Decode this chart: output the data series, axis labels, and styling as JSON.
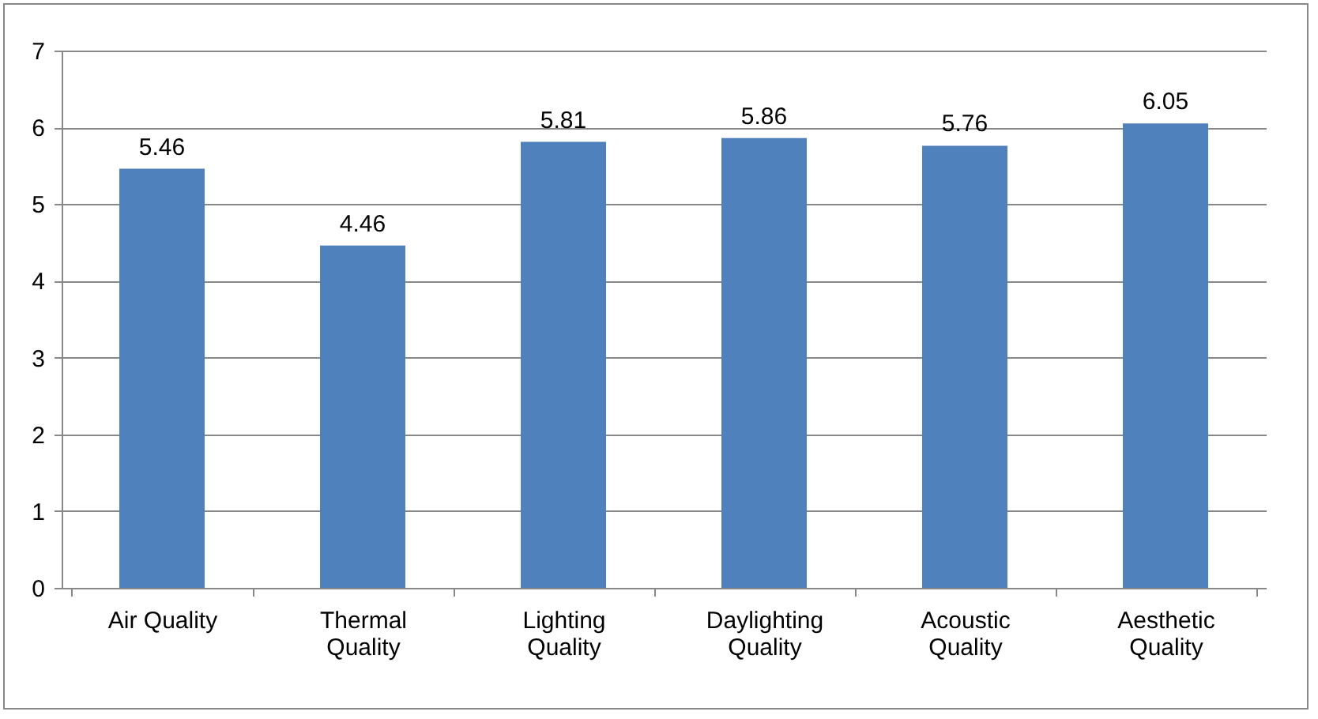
{
  "chart_data": {
    "type": "bar",
    "categories": [
      "Air Quality",
      "Thermal Quality",
      "Lighting Quality",
      "Daylighting Quality",
      "Acoustic Quality",
      "Aesthetic Quality"
    ],
    "values": [
      5.46,
      4.46,
      5.81,
      5.86,
      5.76,
      6.05
    ],
    "color": "#4f81bd",
    "ylim": [
      0,
      7
    ],
    "yticks": [
      0,
      1,
      2,
      3,
      4,
      5,
      6,
      7
    ],
    "grid": "y",
    "data_labels": true
  }
}
